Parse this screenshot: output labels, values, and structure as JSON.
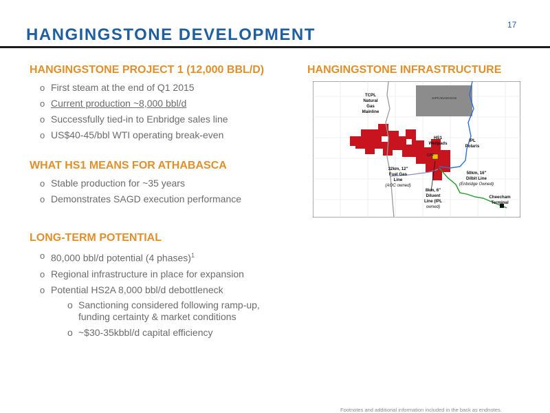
{
  "page_number": "17",
  "title": "HANGINGSTONE DEVELOPMENT",
  "sections": [
    {
      "heading": "HANGINGSTONE PROJECT 1 (12,000 BBL/D)",
      "bullets": [
        "First steam at the end of Q1 2015",
        "Current production ~8,000 bbl/d",
        "Successfully tied-in to Enbridge sales line",
        "US$40-45/bbl WTI operating break-even"
      ]
    },
    {
      "heading": "WHAT HS1 MEANS FOR ATHABASCA",
      "bullets": [
        "Stable production for ~35 years",
        "Demonstrates SAGD execution performance"
      ]
    },
    {
      "heading": "LONG-TERM POTENTIAL",
      "bullets": [
        "80,000 bbl/d potential (4 phases)",
        "Regional infrastructure in place for expansion",
        "Potential HS2A 8,000 bbl/d debottleneck"
      ],
      "footnote_ref": "1",
      "sub_bullets": [
        "Sanctioning considered following ramp-up, funding certainty & market conditions",
        "~$30-35kbbl/d capital efficiency"
      ]
    }
  ],
  "bullet_marker": "o",
  "map": {
    "title": "HANGINGSTONE INFRASTRUCTURE",
    "labels": {
      "tcpl": [
        "TCPL",
        "Natural",
        "Gas",
        "Mainline"
      ],
      "gray_block": "JAPCANADAGAS",
      "hs1": [
        "HS1",
        "Wellpads"
      ],
      "cpf": "CPF",
      "ipl_polaris": [
        "IPL",
        "Polaris"
      ],
      "fuel_gas": [
        "32km, 12\"",
        "Fuel Gas",
        "Line"
      ],
      "fuel_gas_owner": "(AOC owned)",
      "dilbit": [
        "50km, 16\"",
        "Dilbit Line"
      ],
      "dilbit_owner": "(Enbridge Owned)",
      "diluent": [
        "8km, 6\"",
        "Diluent",
        "Line (IPL",
        "owned)"
      ],
      "cheecham": [
        "Cheecham",
        "Terminal"
      ]
    },
    "colors": {
      "leases": "#c8141e",
      "gray_block": "#8c8c8c",
      "tcpl_line": "#9a9a9a",
      "ipl_line": "#2a6fd6",
      "dilbit_line": "#1e9a2a",
      "fuel_gas_line": "#8a8acc"
    }
  },
  "footnote": "Footnotes and additional information included in the back as endnotes.",
  "colors": {
    "title": "#1f5fa0",
    "heading": "#e0902a",
    "body": "#6b6b6b"
  }
}
